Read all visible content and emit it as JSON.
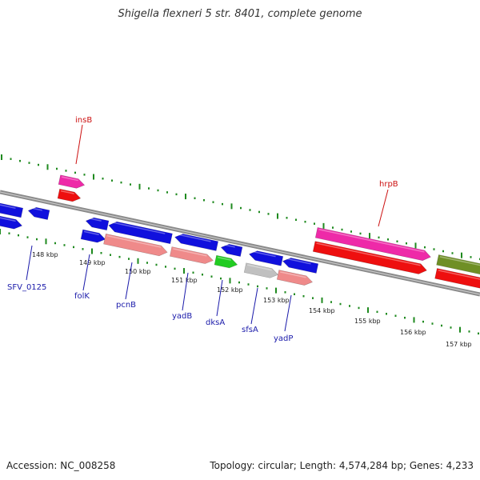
{
  "title": "Shigella flexneri 5 str. 8401, complete genome",
  "footer": {
    "accession": "Accession: NC_008258",
    "summary": "Topology: circular; Length: 4,574,284 bp; Genes: 4,233"
  },
  "colors": {
    "backbone": "#8a8a8a",
    "tick": "#1f8a1f",
    "blue": "#1010dd",
    "salmon": "#ef8a8a",
    "pink": "#ee2aa8",
    "red": "#ee0f0f",
    "green": "#22cc22",
    "grey": "#c0c0c0",
    "olive": "#6f8f25",
    "label_blue": "#1a1aaa",
    "label_red": "#cc1111"
  },
  "kbp_labels": [
    "148 kbp",
    "149 kbp",
    "150 kbp",
    "151 kbp",
    "152 kbp",
    "153 kbp",
    "154 kbp",
    "155 kbp",
    "156 kbp",
    "157 kbp"
  ],
  "gene_labels": [
    "insB",
    "hrpB",
    "SFV_0125",
    "folK",
    "pcnB",
    "yadB",
    "dksA",
    "sfsA",
    "yadP"
  ]
}
